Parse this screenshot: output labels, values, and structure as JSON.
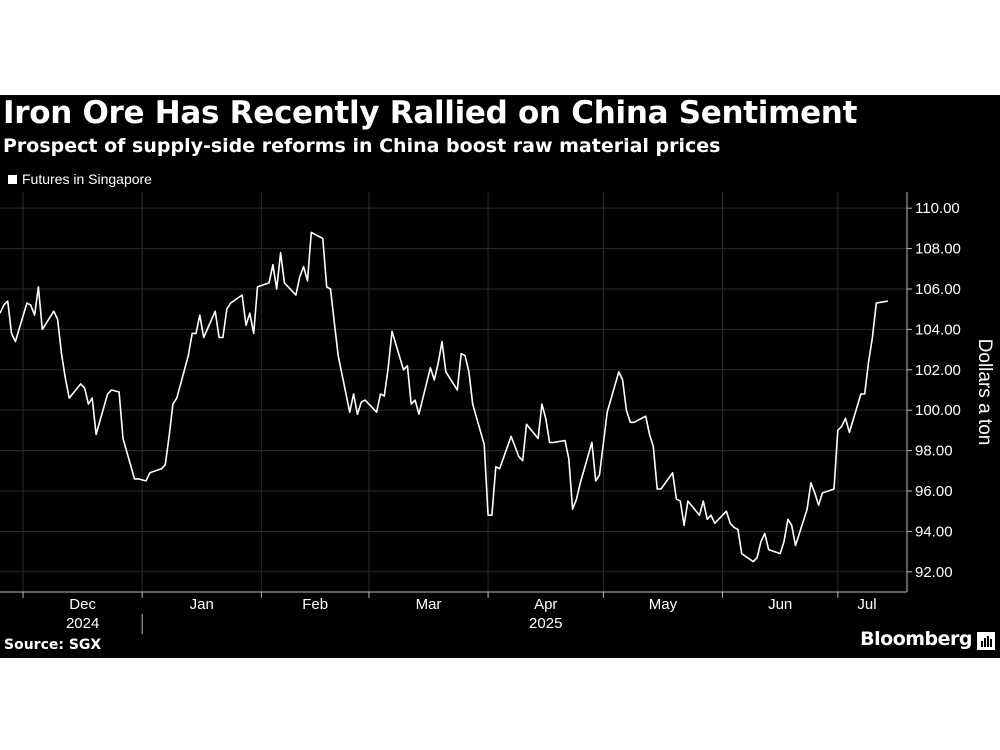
{
  "header": {
    "title": "Iron Ore Has Recently Rallied on China Sentiment",
    "subtitle": "Prospect of supply-side reforms in China boost raw material prices"
  },
  "footer": {
    "source": "Source: SGX",
    "brand": "Bloomberg"
  },
  "colors": {
    "background": "#000000",
    "line": "#ffffff",
    "grid": "#2b2b2b",
    "axis": "#bbbbbb",
    "text": "#ffffff"
  },
  "chart_data": {
    "type": "line",
    "title": "Iron Ore Has Recently Rallied on China Sentiment",
    "subtitle": "Prospect of supply-side reforms in China boost raw material prices",
    "legend": "top-left",
    "ylabel": "Dollars a ton",
    "ylim": [
      91.0,
      110.8
    ],
    "y_ticks": [
      "110.00",
      "108.00",
      "106.00",
      "104.00",
      "102.00",
      "100.00",
      "98.00",
      "96.00",
      "94.00",
      "92.00"
    ],
    "y_tick_values": [
      110,
      108,
      106,
      104,
      102,
      100,
      98,
      96,
      94,
      92
    ],
    "x_tick_labels": [
      "Dec",
      "Jan",
      "Feb",
      "Mar",
      "Apr",
      "May",
      "Jun",
      "Jul"
    ],
    "year_labels": [
      {
        "label": "2024",
        "under": "Dec"
      },
      {
        "label": "2025",
        "under": "Apr"
      }
    ],
    "grid": true,
    "x_range": [
      "2024-11-25",
      "2025-07-19"
    ],
    "series": [
      {
        "name": "Futures in Singapore",
        "points": [
          [
            "2024-11-25",
            104.8
          ],
          [
            "2024-11-26",
            105.2
          ],
          [
            "2024-11-27",
            105.4
          ],
          [
            "2024-11-28",
            103.8
          ],
          [
            "2024-11-29",
            103.4
          ],
          [
            "2024-12-02",
            105.3
          ],
          [
            "2024-12-03",
            105.2
          ],
          [
            "2024-12-04",
            104.7
          ],
          [
            "2024-12-05",
            106.1
          ],
          [
            "2024-12-06",
            104.0
          ],
          [
            "2024-12-09",
            104.9
          ],
          [
            "2024-12-10",
            104.5
          ],
          [
            "2024-12-11",
            102.8
          ],
          [
            "2024-12-12",
            101.6
          ],
          [
            "2024-12-13",
            100.6
          ],
          [
            "2024-12-16",
            101.3
          ],
          [
            "2024-12-17",
            101.1
          ],
          [
            "2024-12-18",
            100.3
          ],
          [
            "2024-12-19",
            100.6
          ],
          [
            "2024-12-20",
            98.8
          ],
          [
            "2024-12-23",
            100.8
          ],
          [
            "2024-12-24",
            101.0
          ],
          [
            "2024-12-26",
            100.9
          ],
          [
            "2024-12-27",
            98.6
          ],
          [
            "2024-12-30",
            96.6
          ],
          [
            "2024-12-31",
            96.6
          ],
          [
            "2025-01-02",
            96.5
          ],
          [
            "2025-01-03",
            96.9
          ],
          [
            "2025-01-06",
            97.1
          ],
          [
            "2025-01-07",
            97.3
          ],
          [
            "2025-01-08",
            98.7
          ],
          [
            "2025-01-09",
            100.3
          ],
          [
            "2025-01-10",
            100.6
          ],
          [
            "2025-01-13",
            102.7
          ],
          [
            "2025-01-14",
            103.8
          ],
          [
            "2025-01-15",
            103.8
          ],
          [
            "2025-01-16",
            104.7
          ],
          [
            "2025-01-17",
            103.6
          ],
          [
            "2025-01-20",
            104.9
          ],
          [
            "2025-01-21",
            103.6
          ],
          [
            "2025-01-22",
            103.6
          ],
          [
            "2025-01-23",
            105.0
          ],
          [
            "2025-01-24",
            105.3
          ],
          [
            "2025-01-27",
            105.7
          ],
          [
            "2025-01-28",
            104.2
          ],
          [
            "2025-01-29",
            104.8
          ],
          [
            "2025-01-30",
            103.8
          ],
          [
            "2025-01-31",
            106.1
          ],
          [
            "2025-02-03",
            106.3
          ],
          [
            "2025-02-04",
            107.2
          ],
          [
            "2025-02-05",
            106.0
          ],
          [
            "2025-02-06",
            107.8
          ],
          [
            "2025-02-07",
            106.3
          ],
          [
            "2025-02-10",
            105.7
          ],
          [
            "2025-02-11",
            106.6
          ],
          [
            "2025-02-12",
            107.1
          ],
          [
            "2025-02-13",
            106.4
          ],
          [
            "2025-02-14",
            108.8
          ],
          [
            "2025-02-17",
            108.5
          ],
          [
            "2025-02-18",
            106.1
          ],
          [
            "2025-02-19",
            106.0
          ],
          [
            "2025-02-20",
            104.3
          ],
          [
            "2025-02-21",
            102.7
          ],
          [
            "2025-02-24",
            99.9
          ],
          [
            "2025-02-25",
            100.8
          ],
          [
            "2025-02-26",
            99.8
          ],
          [
            "2025-02-27",
            100.4
          ],
          [
            "2025-02-28",
            100.5
          ],
          [
            "2025-03-03",
            99.9
          ],
          [
            "2025-03-04",
            100.8
          ],
          [
            "2025-03-05",
            100.7
          ],
          [
            "2025-03-06",
            102.1
          ],
          [
            "2025-03-07",
            103.9
          ],
          [
            "2025-03-10",
            102.0
          ],
          [
            "2025-03-11",
            102.2
          ],
          [
            "2025-03-12",
            100.3
          ],
          [
            "2025-03-13",
            100.5
          ],
          [
            "2025-03-14",
            99.8
          ],
          [
            "2025-03-17",
            102.1
          ],
          [
            "2025-03-18",
            101.5
          ],
          [
            "2025-03-19",
            102.3
          ],
          [
            "2025-03-20",
            103.4
          ],
          [
            "2025-03-21",
            101.9
          ],
          [
            "2025-03-24",
            101.0
          ],
          [
            "2025-03-25",
            102.8
          ],
          [
            "2025-03-26",
            102.7
          ],
          [
            "2025-03-27",
            101.9
          ],
          [
            "2025-03-28",
            100.3
          ],
          [
            "2025-03-31",
            98.3
          ],
          [
            "2025-04-01",
            94.8
          ],
          [
            "2025-04-02",
            94.8
          ],
          [
            "2025-04-03",
            97.2
          ],
          [
            "2025-04-04",
            97.1
          ],
          [
            "2025-04-07",
            98.7
          ],
          [
            "2025-04-08",
            98.2
          ],
          [
            "2025-04-09",
            97.7
          ],
          [
            "2025-04-10",
            97.5
          ],
          [
            "2025-04-11",
            99.3
          ],
          [
            "2025-04-14",
            98.6
          ],
          [
            "2025-04-15",
            100.3
          ],
          [
            "2025-04-16",
            99.6
          ],
          [
            "2025-04-17",
            98.4
          ],
          [
            "2025-04-18",
            98.4
          ],
          [
            "2025-04-21",
            98.5
          ],
          [
            "2025-04-22",
            97.6
          ],
          [
            "2025-04-23",
            95.1
          ],
          [
            "2025-04-24",
            95.6
          ],
          [
            "2025-04-25",
            96.4
          ],
          [
            "2025-04-28",
            98.4
          ],
          [
            "2025-04-29",
            96.5
          ],
          [
            "2025-04-30",
            96.8
          ],
          [
            "2025-05-02",
            99.9
          ],
          [
            "2025-05-05",
            101.9
          ],
          [
            "2025-05-06",
            101.5
          ],
          [
            "2025-05-07",
            100.0
          ],
          [
            "2025-05-08",
            99.4
          ],
          [
            "2025-05-09",
            99.4
          ],
          [
            "2025-05-12",
            99.7
          ],
          [
            "2025-05-13",
            98.8
          ],
          [
            "2025-05-14",
            98.2
          ],
          [
            "2025-05-15",
            96.1
          ],
          [
            "2025-05-16",
            96.1
          ],
          [
            "2025-05-19",
            96.9
          ],
          [
            "2025-05-20",
            95.6
          ],
          [
            "2025-05-21",
            95.5
          ],
          [
            "2025-05-22",
            94.3
          ],
          [
            "2025-05-23",
            95.5
          ],
          [
            "2025-05-26",
            94.8
          ],
          [
            "2025-05-27",
            95.5
          ],
          [
            "2025-05-28",
            94.6
          ],
          [
            "2025-05-29",
            94.8
          ],
          [
            "2025-05-30",
            94.4
          ],
          [
            "2025-06-02",
            95.0
          ],
          [
            "2025-06-03",
            94.4
          ],
          [
            "2025-06-04",
            94.2
          ],
          [
            "2025-06-05",
            94.1
          ],
          [
            "2025-06-06",
            92.9
          ],
          [
            "2025-06-09",
            92.5
          ],
          [
            "2025-06-10",
            92.7
          ],
          [
            "2025-06-11",
            93.5
          ],
          [
            "2025-06-12",
            93.9
          ],
          [
            "2025-06-13",
            93.1
          ],
          [
            "2025-06-16",
            92.9
          ],
          [
            "2025-06-17",
            93.5
          ],
          [
            "2025-06-18",
            94.6
          ],
          [
            "2025-06-19",
            94.3
          ],
          [
            "2025-06-20",
            93.3
          ],
          [
            "2025-06-23",
            95.1
          ],
          [
            "2025-06-24",
            96.4
          ],
          [
            "2025-06-25",
            95.9
          ],
          [
            "2025-06-26",
            95.3
          ],
          [
            "2025-06-27",
            95.9
          ],
          [
            "2025-06-30",
            96.1
          ],
          [
            "2025-07-01",
            99.0
          ],
          [
            "2025-07-02",
            99.2
          ],
          [
            "2025-07-03",
            99.6
          ],
          [
            "2025-07-04",
            98.9
          ],
          [
            "2025-07-07",
            100.8
          ],
          [
            "2025-07-08",
            100.8
          ],
          [
            "2025-07-09",
            102.4
          ],
          [
            "2025-07-10",
            103.6
          ],
          [
            "2025-07-11",
            105.3
          ],
          [
            "2025-07-14",
            105.4
          ]
        ]
      }
    ]
  }
}
